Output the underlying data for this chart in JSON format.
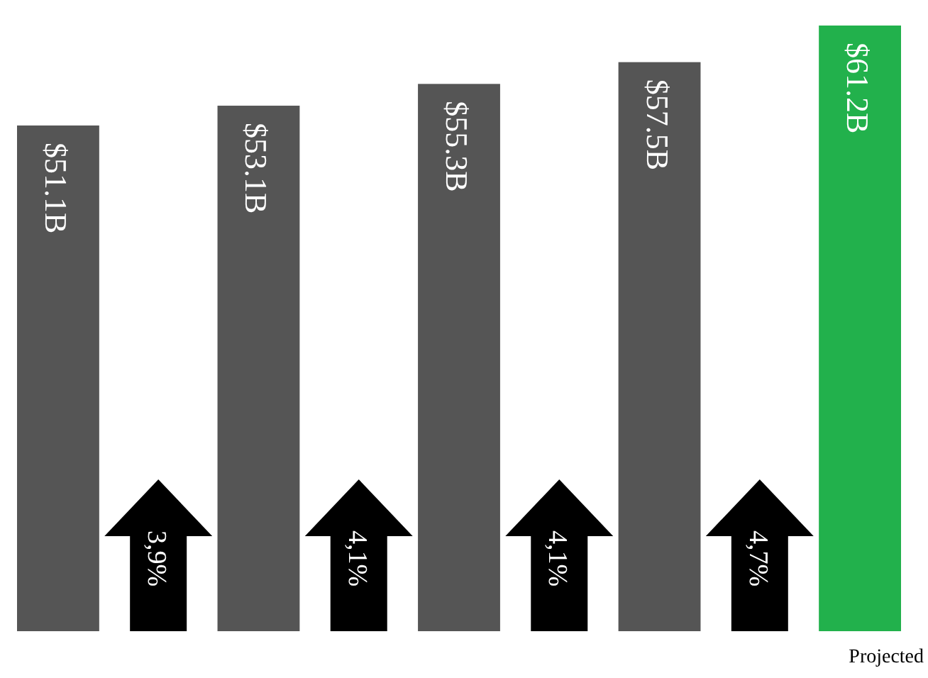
{
  "chart_data": {
    "type": "bar",
    "categories": [
      null,
      null,
      null,
      null,
      "Projected"
    ],
    "values": [
      51.1,
      53.1,
      55.3,
      57.5,
      61.2
    ],
    "colors": [
      "#555555",
      "#555555",
      "#555555",
      "#555555",
      "#22b14c"
    ],
    "value_labels": [
      "$51.1B",
      "$53.1B",
      "$55.3B",
      "$57.5B",
      "$61.2B"
    ],
    "tick_labels": "x",
    "annotations": [
      "3,9%",
      "4,1%",
      "4,1%",
      "4,7%"
    ]
  }
}
